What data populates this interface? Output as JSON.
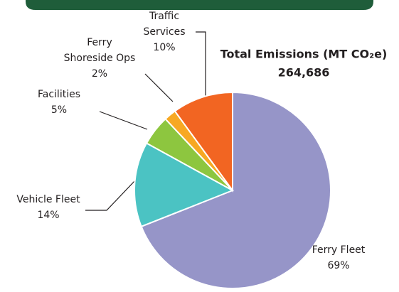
{
  "chart_data": {
    "type": "pie",
    "title": "Total Emissions (MT CO₂e)",
    "subtitle": "264,686",
    "categories": [
      "Ferry Fleet",
      "Vehicle Fleet",
      "Facilities",
      "Ferry\nShoreside Ops",
      "Traffic\nServices"
    ],
    "values": [
      69,
      14,
      5,
      2,
      10
    ],
    "value_labels": [
      "69%",
      "14%",
      "5%",
      "2%",
      "10%"
    ],
    "colors": [
      "#9695c8",
      "#4bc3c3",
      "#8dc63f",
      "#f7a823",
      "#f26522"
    ]
  }
}
